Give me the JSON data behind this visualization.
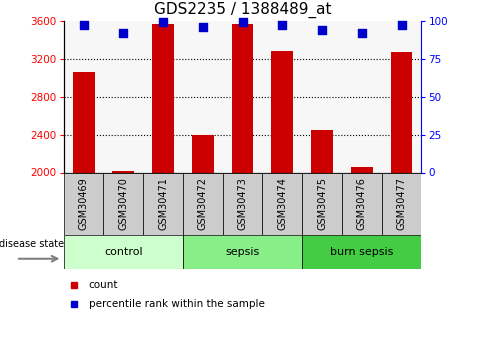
{
  "title": "GDS2235 / 1388489_at",
  "samples": [
    "GSM30469",
    "GSM30470",
    "GSM30471",
    "GSM30472",
    "GSM30473",
    "GSM30474",
    "GSM30475",
    "GSM30476",
    "GSM30477"
  ],
  "counts": [
    3060,
    2020,
    3570,
    2400,
    3570,
    3280,
    2450,
    2060,
    3270
  ],
  "percentiles": [
    97,
    92,
    99,
    96,
    99,
    97,
    94,
    92,
    97
  ],
  "groups": [
    {
      "label": "control",
      "start": 0,
      "end": 3,
      "color": "#ccffcc"
    },
    {
      "label": "sepsis",
      "start": 3,
      "end": 6,
      "color": "#88ee88"
    },
    {
      "label": "burn sepsis",
      "start": 6,
      "end": 9,
      "color": "#44cc44"
    }
  ],
  "bar_color": "#cc0000",
  "dot_color": "#0000cc",
  "ylim_left": [
    2000,
    3600
  ],
  "ylim_right": [
    0,
    100
  ],
  "yticks_left": [
    2000,
    2400,
    2800,
    3200,
    3600
  ],
  "yticks_right": [
    0,
    25,
    50,
    75,
    100
  ],
  "grid_values": [
    2400,
    2800,
    3200
  ],
  "title_fontsize": 11,
  "sample_fontsize": 7,
  "tick_fontsize": 7.5,
  "group_fontsize": 8,
  "bar_width": 0.55,
  "dot_size": 30,
  "disease_state_label": "disease state",
  "legend_count": "count",
  "legend_percentile": "percentile rank within the sample",
  "legend_fontsize": 7.5
}
